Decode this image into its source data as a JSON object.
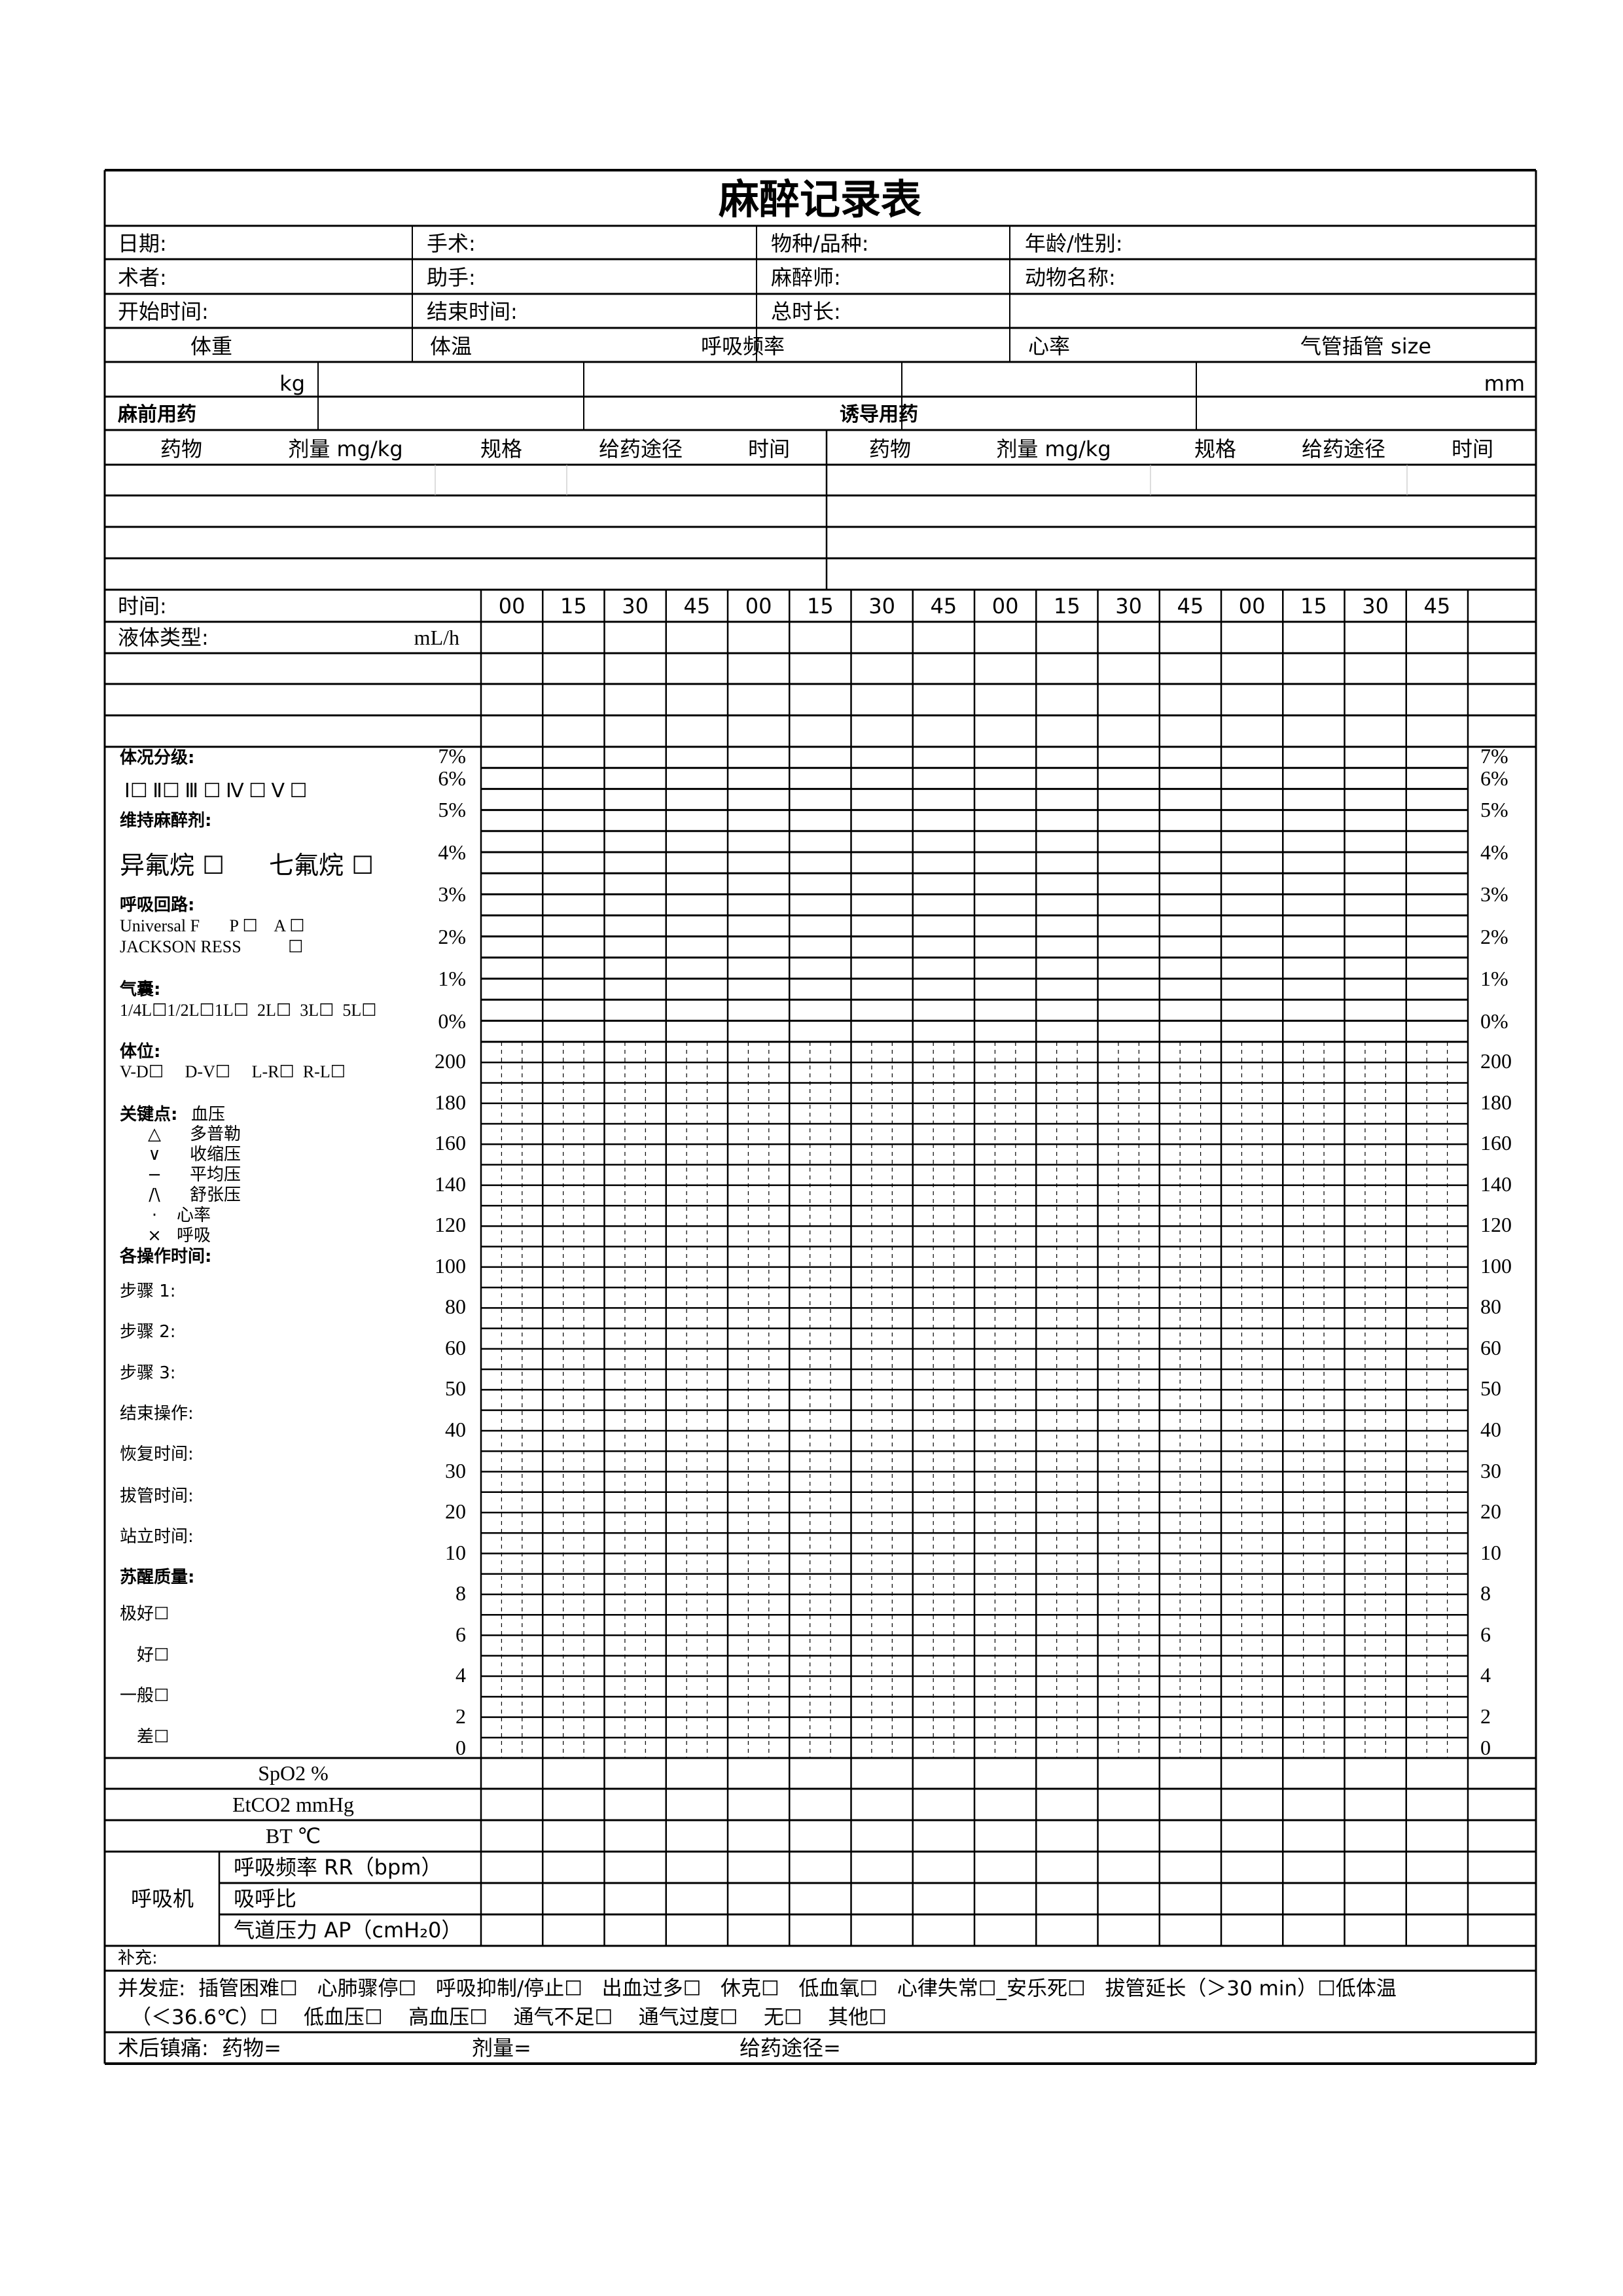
{
  "title": "麻醉记录表",
  "info": {
    "date": "日期:",
    "surgery": "手术:",
    "species": "物种/品种:",
    "age_sex": "年龄/性别:",
    "surgeon": "术者:",
    "assistant": "助手:",
    "anesthetist": "麻醉师:",
    "animal_name": "动物名称:",
    "start_time": "开始时间:",
    "end_time": "结束时间:",
    "total_duration": "总时长:"
  },
  "vitals": {
    "headers": [
      "体重",
      "体温",
      "呼吸频率",
      "心率",
      "气管插管  size"
    ],
    "weight_unit": "kg",
    "tube_unit": "mm"
  },
  "premed": {
    "title": "麻前用药",
    "columns": [
      "药物",
      "剂量 mg/kg",
      "规格",
      "给药途径",
      "时间"
    ]
  },
  "induction": {
    "title": "诱导用药",
    "columns": [
      "药物",
      "剂量 mg/kg",
      "规格",
      "给药途径",
      "时间"
    ]
  },
  "timeline": {
    "time_label": "时间:",
    "fluid_label": "液体类型:",
    "fluid_unit": "mL/h",
    "times": [
      "00",
      "15",
      "30",
      "45",
      "00",
      "15",
      "30",
      "45",
      "00",
      "15",
      "30",
      "45",
      "00",
      "15",
      "30",
      "45"
    ]
  },
  "left_panel": {
    "asa_title": "体况分级:",
    "asa_options": "Ⅰ☐  Ⅱ☐  Ⅲ ☐  Ⅳ ☐  Ⅴ ☐",
    "maint_title": "维持麻醉剂:",
    "isoflurane": "异氟烷 ☐",
    "sevoflurane": "七氟烷 ☐",
    "circuit_title": "呼吸回路:",
    "circuit_1": "Universal F       P ☐    A ☐",
    "circuit_2": "JACKSON RESS           ☐",
    "bag_title": "气囊:",
    "bag_options": "1/4L☐1/2L☐1L☐  2L☐  3L☐  5L☐",
    "position_title": "体位:",
    "position_options": "V-D☐     D-V☐     L-R☐  R-L☐",
    "key_title": "关键点:",
    "key_bp": "血压",
    "legend": [
      {
        "symbol": "△",
        "label": "多普勒"
      },
      {
        "symbol": "∨",
        "label": "收缩压"
      },
      {
        "symbol": "−",
        "label": "平均压"
      },
      {
        "symbol": "/\\",
        "label": "舒张压"
      },
      {
        "symbol": "·",
        "label": "心率"
      },
      {
        "symbol": "×",
        "label": "呼吸"
      }
    ],
    "ops_title": "各操作时间:",
    "ops": [
      "步骤 1:",
      "步骤 2:",
      "步骤 3:",
      "结束操作:",
      "恢复时间:",
      "拔管时间:",
      "站立时间:"
    ],
    "recovery_title": "苏醒质量:",
    "recovery": [
      "极好☐",
      "好☐",
      "一般☐",
      "差☐"
    ]
  },
  "axis": {
    "gas_labels": [
      "7%",
      "6%",
      "5%",
      "4%",
      "3%",
      "2%",
      "1%",
      "0%"
    ],
    "bp_labels": [
      "200",
      "180",
      "160",
      "140",
      "120",
      "100",
      "80",
      "60",
      "50",
      "40",
      "30",
      "20",
      "10",
      "8",
      "6",
      "4",
      "2",
      "0"
    ]
  },
  "monitor_rows": {
    "spo2": "SpO2 %",
    "etco2": "EtCO2 mmHg",
    "bt": "BT  ℃",
    "ventilator": "呼吸机",
    "rr": "呼吸频率 RR（bpm）",
    "ie": "吸呼比",
    "ap": "气道压力 AP（cmH₂0）"
  },
  "footer": {
    "supplement": "补充:",
    "complications_1": "并发症:  插管困难☐   心肺骤停☐   呼吸抑制/停止☐   出血过多☐   休克☐   低血氧☐   心律失常☐_安乐死☐   拔管延长（＞30 min）☐低体温",
    "complications_2": "（＜36.6℃）☐    低血压☐    高血压☐    通气不足☐    通气过度☐    无☐    其他☐",
    "analgesia": "术后镇痛:  药物=",
    "dose": "剂量=",
    "route": "给药途径="
  }
}
